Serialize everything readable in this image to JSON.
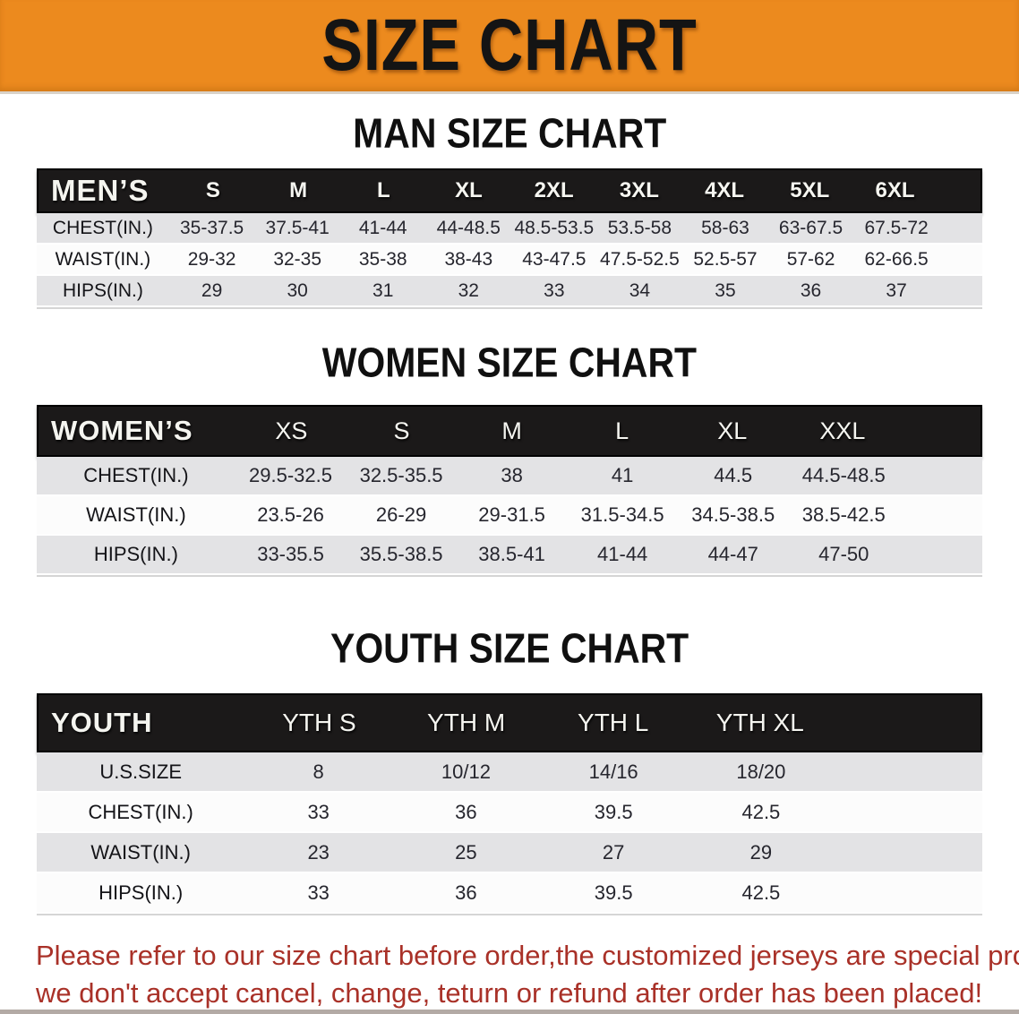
{
  "banner": {
    "title": "SIZE CHART"
  },
  "colors": {
    "banner_bg": "#ec8a1e",
    "header_bar_bg": "#1b1919",
    "row_shaded_bg": "#e3e3e5",
    "row_plain_bg": "#fcfcfc",
    "disclaimer_text": "#a93128"
  },
  "sections": [
    {
      "heading": "MAN SIZE CHART",
      "table": {
        "corner_label": "MEN’S",
        "size_columns": [
          "S",
          "M",
          "L",
          "XL",
          "2XL",
          "3XL",
          "4XL",
          "5XL",
          "6XL"
        ],
        "rows": [
          {
            "label": "CHEST(IN.)",
            "values": [
              "35-37.5",
              "37.5-41",
              "41-44",
              "44-48.5",
              "48.5-53.5",
              "53.5-58",
              "58-63",
              "63-67.5",
              "67.5-72"
            ]
          },
          {
            "label": "WAIST(IN.)",
            "values": [
              "29-32",
              "32-35",
              "35-38",
              "38-43",
              "43-47.5",
              "47.5-52.5",
              "52.5-57",
              "57-62",
              "62-66.5"
            ]
          },
          {
            "label": "HIPS(IN.)",
            "values": [
              "29",
              "30",
              "31",
              "32",
              "33",
              "34",
              "35",
              "36",
              "37"
            ]
          }
        ]
      }
    },
    {
      "heading": "WOMEN SIZE CHART",
      "table": {
        "corner_label": "WOMEN’S",
        "size_columns": [
          "XS",
          "S",
          "M",
          "L",
          "XL",
          "XXL"
        ],
        "rows": [
          {
            "label": "CHEST(IN.)",
            "values": [
              "29.5-32.5",
              "32.5-35.5",
              "38",
              "41",
              "44.5",
              "44.5-48.5"
            ]
          },
          {
            "label": "WAIST(IN.)",
            "values": [
              "23.5-26",
              "26-29",
              "29-31.5",
              "31.5-34.5",
              "34.5-38.5",
              "38.5-42.5"
            ]
          },
          {
            "label": "HIPS(IN.)",
            "values": [
              "33-35.5",
              "35.5-38.5",
              "38.5-41",
              "41-44",
              "44-47",
              "47-50"
            ]
          }
        ]
      }
    },
    {
      "heading": "YOUTH SIZE CHART",
      "table": {
        "corner_label": "YOUTH",
        "size_columns": [
          "YTH S",
          "YTH M",
          "YTH L",
          "YTH XL"
        ],
        "rows": [
          {
            "label": "U.S.SIZE",
            "values": [
              "8",
              "10/12",
              "14/16",
              "18/20"
            ]
          },
          {
            "label": "CHEST(IN.)",
            "values": [
              "33",
              "36",
              "39.5",
              "42.5"
            ]
          },
          {
            "label": "WAIST(IN.)",
            "values": [
              "23",
              "25",
              "27",
              "29"
            ]
          },
          {
            "label": "HIPS(IN.)",
            "values": [
              "33",
              "36",
              "39.5",
              "42.5"
            ]
          }
        ]
      }
    }
  ],
  "footer": {
    "line1": "Please refer to our size chart before order,the customized jerseys are special products,",
    "line2": "we don't accept cancel, change, teturn or refund after order has been placed!"
  }
}
